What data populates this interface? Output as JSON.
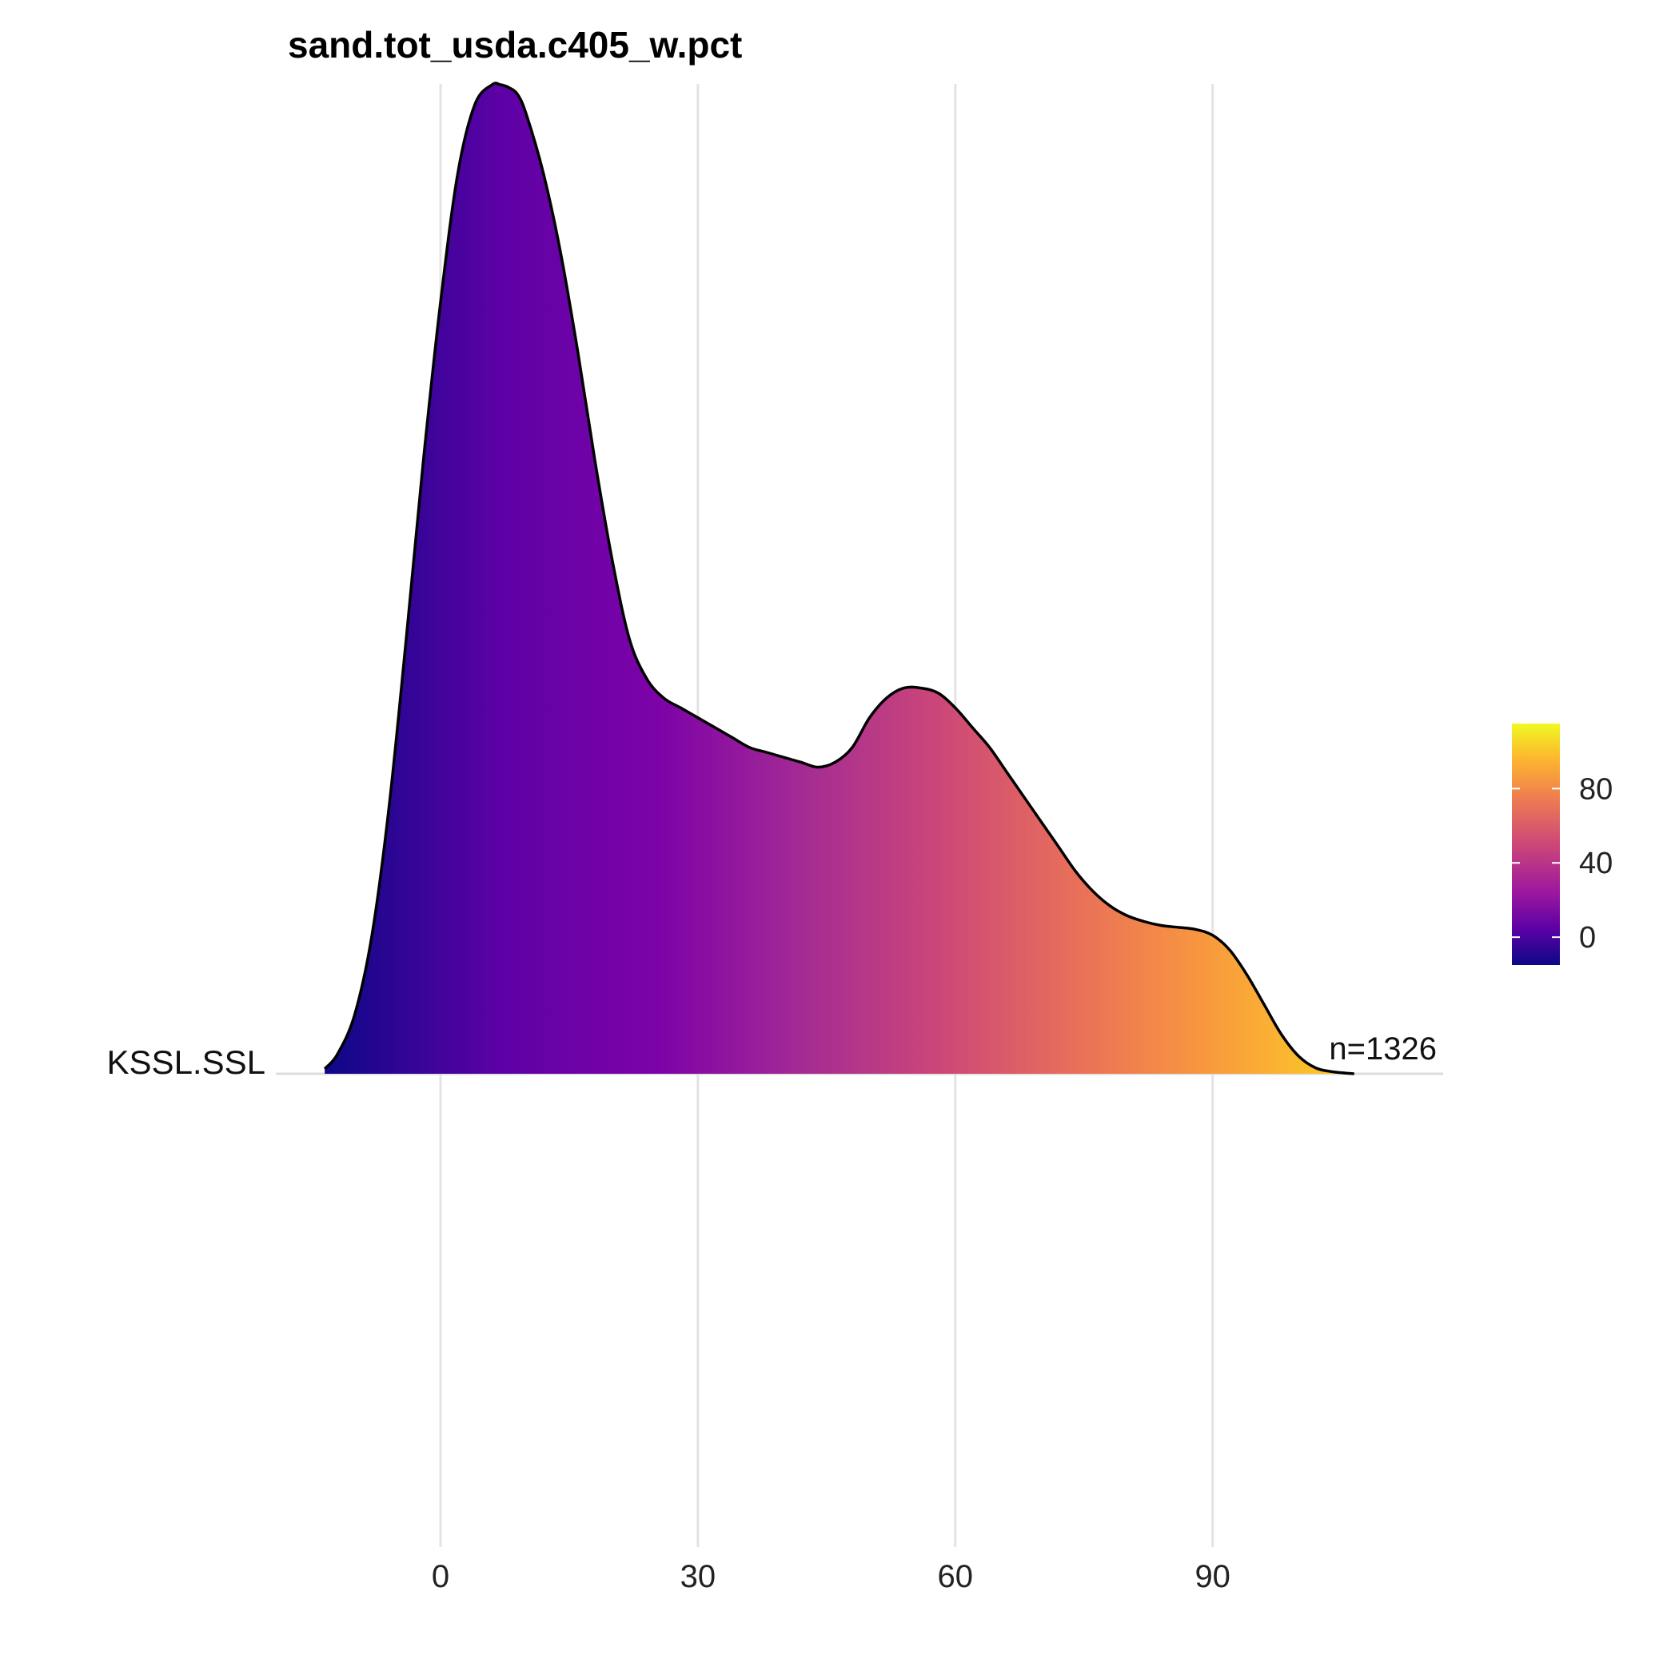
{
  "chart_data": {
    "type": "ridgeline",
    "title": "sand.tot_usda.c405_w.pct",
    "xlabel": "",
    "ylabel": "",
    "xlim": [
      -15,
      130
    ],
    "x_ticks": [
      0,
      30,
      60,
      90
    ],
    "x_tick_labels": [
      "0",
      "30",
      "60",
      "90"
    ],
    "grid": "vertical major gridlines",
    "categories": [
      "KSSL.SSL"
    ],
    "annotation": "n=1326",
    "series": [
      {
        "x": [
          -13.5,
          -12,
          -10,
          -8,
          -6,
          -4,
          -2,
          0,
          2,
          4,
          6,
          7,
          8,
          9,
          10,
          12,
          14,
          16,
          18,
          20,
          22,
          24,
          26,
          28,
          30,
          32,
          34,
          36,
          38,
          40,
          42,
          44,
          46,
          48,
          50,
          52,
          54,
          56,
          58,
          60,
          62,
          64,
          66,
          68,
          70,
          72,
          74,
          76,
          78,
          80,
          82,
          84,
          86,
          88,
          90,
          92,
          94,
          96,
          98,
          100,
          102,
          104,
          106.5
        ],
        "density": [
          0.005,
          0.02,
          0.06,
          0.14,
          0.27,
          0.44,
          0.62,
          0.78,
          0.91,
          0.98,
          1.0,
          1.0,
          0.997,
          0.99,
          0.97,
          0.91,
          0.83,
          0.73,
          0.62,
          0.52,
          0.44,
          0.4,
          0.38,
          0.37,
          0.36,
          0.35,
          0.34,
          0.33,
          0.325,
          0.32,
          0.315,
          0.31,
          0.315,
          0.33,
          0.36,
          0.38,
          0.39,
          0.39,
          0.385,
          0.37,
          0.35,
          0.33,
          0.305,
          0.28,
          0.255,
          0.23,
          0.205,
          0.185,
          0.17,
          0.16,
          0.154,
          0.15,
          0.148,
          0.146,
          0.14,
          0.125,
          0.1,
          0.07,
          0.04,
          0.018,
          0.006,
          0.002,
          0.0
        ]
      }
    ],
    "fill": "viridis plasma gradient by x value",
    "colorbar": {
      "ticks": [
        "80",
        "40",
        "0"
      ],
      "tick_values": [
        80,
        40,
        0
      ],
      "range": [
        -15,
        115
      ],
      "colors": [
        "#0d0887",
        "#5c01a6",
        "#9c179e",
        "#cc4778",
        "#ed7953",
        "#fdb42f",
        "#f0f921"
      ]
    }
  }
}
